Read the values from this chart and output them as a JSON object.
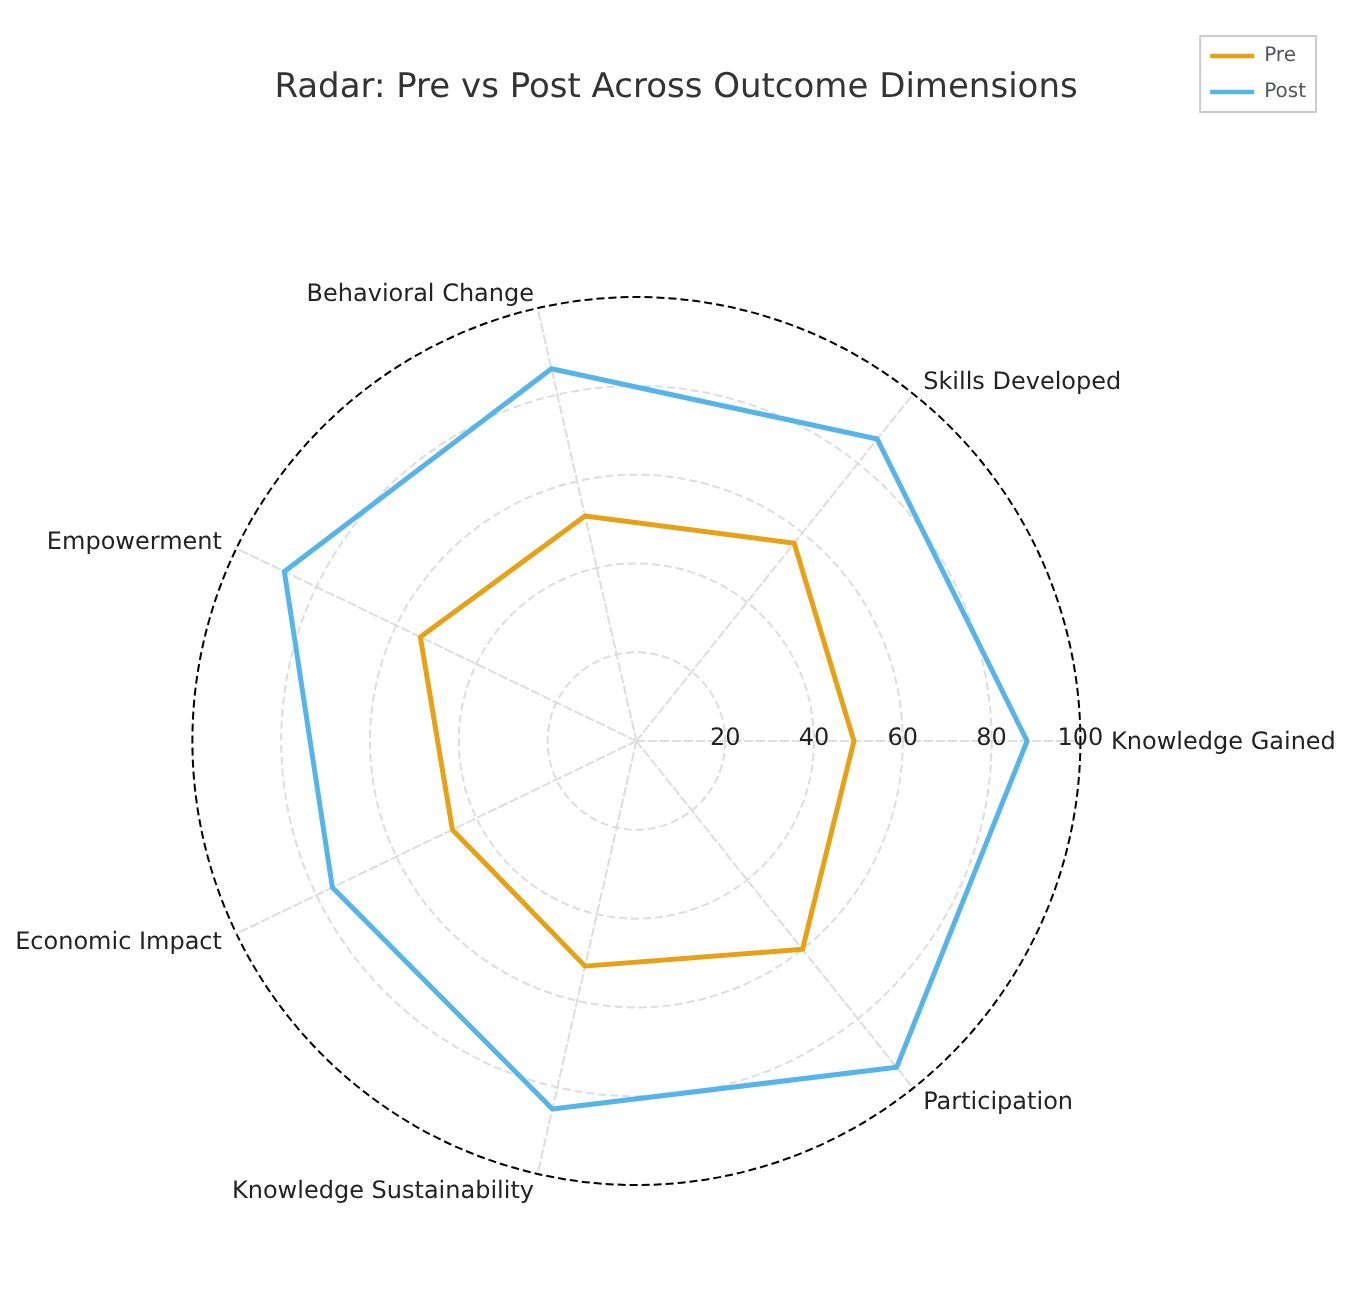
{
  "chart_data": {
    "type": "radar",
    "title": "Radar: Pre vs Post Across Outcome Dimensions",
    "categories": [
      "Behavioral Change",
      "Skills Developed",
      "Knowledge Gained",
      "Participation",
      "Knowledge Sustainability",
      "Economic Impact",
      "Empowerment"
    ],
    "series": [
      {
        "name": "Pre",
        "color": "#e6a117",
        "values": [
          52,
          57,
          49,
          60,
          52,
          46,
          54
        ]
      },
      {
        "name": "Post",
        "color": "#56b4e9",
        "values": [
          86,
          87,
          88,
          94,
          85,
          76,
          88
        ]
      }
    ],
    "ylim": [
      0,
      100
    ],
    "yticks": [
      20,
      40,
      60,
      80,
      100
    ],
    "grid": true,
    "legend": "top right",
    "marker": "none",
    "line_style": "solid"
  }
}
